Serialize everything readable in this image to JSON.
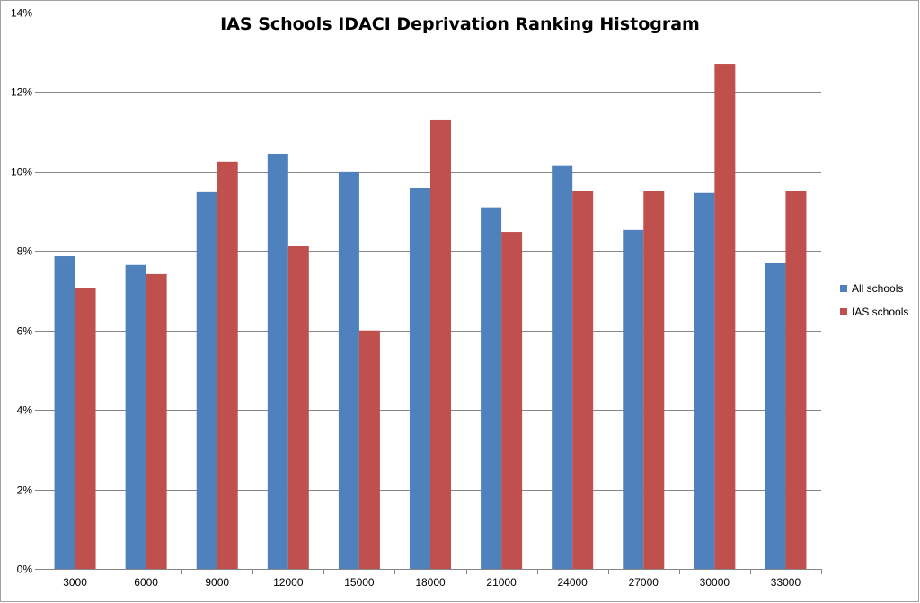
{
  "chart_data": {
    "type": "bar",
    "title": "IAS Schools IDACI Deprivation Ranking Histogram",
    "xlabel": "",
    "ylabel": "",
    "categories": [
      "3000",
      "6000",
      "9000",
      "12000",
      "15000",
      "18000",
      "21000",
      "24000",
      "27000",
      "30000",
      "33000"
    ],
    "series": [
      {
        "name": "All schools",
        "color": "#4f81bd",
        "values": [
          7.87,
          7.65,
          9.48,
          10.45,
          10.0,
          9.59,
          9.1,
          10.14,
          8.53,
          9.46,
          7.69
        ]
      },
      {
        "name": "IAS schools",
        "color": "#c0504d",
        "values": [
          7.06,
          7.42,
          10.25,
          8.12,
          6.0,
          11.31,
          8.48,
          9.52,
          9.52,
          12.71,
          9.52
        ]
      }
    ],
    "ylim": [
      0,
      14
    ],
    "yticks": [
      "0%",
      "2%",
      "4%",
      "6%",
      "8%",
      "10%",
      "12%",
      "14%"
    ],
    "grid": true,
    "legend": "right"
  }
}
